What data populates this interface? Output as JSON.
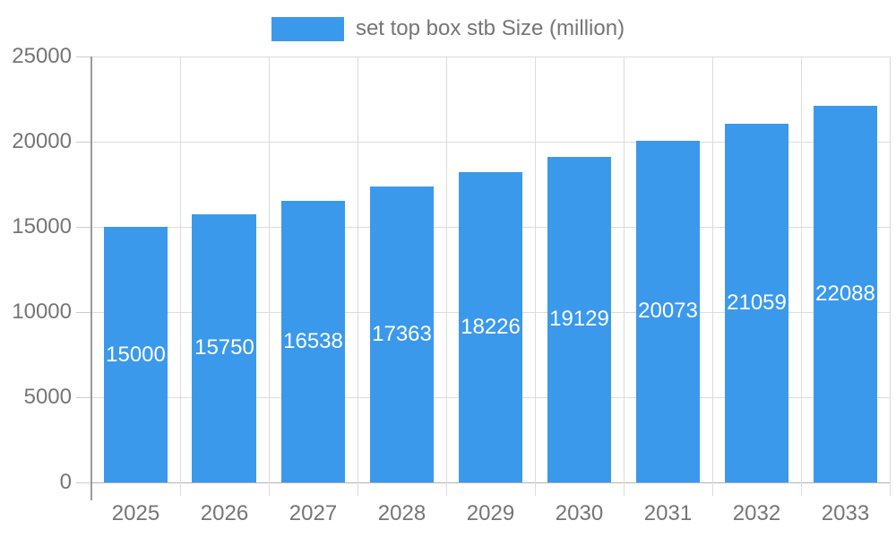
{
  "chart_data": {
    "type": "bar",
    "title": "",
    "categories": [
      "2025",
      "2026",
      "2027",
      "2028",
      "2029",
      "2030",
      "2031",
      "2032",
      "2033"
    ],
    "series": [
      {
        "name": "set top box stb Size (million)",
        "values": [
          15000,
          15750,
          16538,
          17363,
          18226,
          19129,
          20073,
          21059,
          22088
        ]
      }
    ],
    "xlabel": "",
    "ylabel": "",
    "ylim": [
      0,
      25000
    ],
    "yticks": [
      0,
      5000,
      10000,
      15000,
      20000,
      25000
    ],
    "grid": true,
    "legend_position": "top-center",
    "value_labels_position": "inside-center",
    "colors": {
      "bar": "#3B99EC",
      "axis_text": "#757575",
      "grid_line": "#dcdcdc",
      "baseline": "#b3b3b3",
      "axis_line": "#9a9a9a",
      "value_label": "#ffffff",
      "background": "#ffffff"
    }
  }
}
